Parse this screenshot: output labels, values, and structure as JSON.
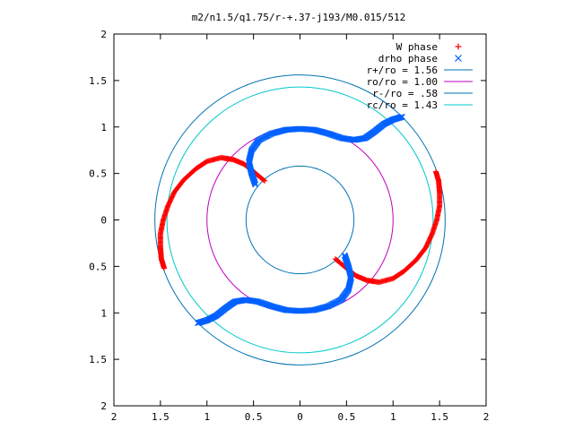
{
  "chart_data": {
    "type": "scatter",
    "title": "m2/n1.5/q1.75/r-+.37-j193/M0.015/512",
    "xlabel": "",
    "ylabel": "",
    "xlim": [
      -2,
      2
    ],
    "ylim": [
      -2,
      2
    ],
    "x_ticks": [
      -2,
      -1.5,
      -1,
      -0.5,
      0,
      0.5,
      1,
      1.5,
      2
    ],
    "y_ticks": [
      -2,
      -1.5,
      -1,
      -0.5,
      0,
      0.5,
      1,
      1.5,
      2
    ],
    "x_tick_labels": [
      "2",
      "1.5",
      "1",
      "0.5",
      "0",
      "0.5",
      "1",
      "1.5",
      "2"
    ],
    "y_tick_labels": [
      "2",
      "1.5",
      "1",
      "0.5",
      "0",
      "0.5",
      "1",
      "1.5",
      "2"
    ],
    "grid": false,
    "legend_position": "top-right",
    "points": [
      {
        "name": "W phase",
        "marker": "+",
        "color": "#ff0000",
        "arms": [
          {
            "xy": [
              [
                -0.38,
                0.42
              ],
              [
                -0.5,
                0.52
              ],
              [
                -0.6,
                0.6
              ],
              [
                -0.72,
                0.65
              ],
              [
                -0.85,
                0.67
              ],
              [
                -1.0,
                0.63
              ],
              [
                -1.12,
                0.55
              ],
              [
                -1.25,
                0.43
              ],
              [
                -1.35,
                0.3
              ],
              [
                -1.42,
                0.15
              ],
              [
                -1.47,
                0.0
              ],
              [
                -1.5,
                -0.15
              ],
              [
                -1.5,
                -0.3
              ],
              [
                -1.49,
                -0.42
              ],
              [
                -1.46,
                -0.52
              ]
            ]
          },
          {
            "xy": [
              [
                0.38,
                -0.42
              ],
              [
                0.5,
                -0.52
              ],
              [
                0.6,
                -0.6
              ],
              [
                0.72,
                -0.65
              ],
              [
                0.85,
                -0.67
              ],
              [
                1.0,
                -0.63
              ],
              [
                1.12,
                -0.55
              ],
              [
                1.25,
                -0.43
              ],
              [
                1.35,
                -0.3
              ],
              [
                1.42,
                -0.15
              ],
              [
                1.47,
                0.0
              ],
              [
                1.5,
                0.15
              ],
              [
                1.5,
                0.3
              ],
              [
                1.49,
                0.42
              ],
              [
                1.46,
                0.52
              ]
            ]
          }
        ]
      },
      {
        "name": "drho phase",
        "marker": "x",
        "color": "#0060ff",
        "arms": [
          {
            "xy": [
              [
                -0.48,
                0.38
              ],
              [
                -0.52,
                0.5
              ],
              [
                -0.55,
                0.62
              ],
              [
                -0.52,
                0.75
              ],
              [
                -0.44,
                0.86
              ],
              [
                -0.3,
                0.93
              ],
              [
                -0.15,
                0.97
              ],
              [
                0.0,
                0.98
              ],
              [
                0.15,
                0.97
              ],
              [
                0.3,
                0.93
              ],
              [
                0.45,
                0.88
              ],
              [
                0.58,
                0.86
              ],
              [
                0.7,
                0.88
              ],
              [
                0.8,
                0.95
              ],
              [
                0.9,
                1.03
              ],
              [
                1.0,
                1.08
              ],
              [
                1.1,
                1.11
              ]
            ]
          },
          {
            "xy": [
              [
                0.48,
                -0.38
              ],
              [
                0.52,
                -0.5
              ],
              [
                0.55,
                -0.62
              ],
              [
                0.52,
                -0.75
              ],
              [
                0.44,
                -0.86
              ],
              [
                0.3,
                -0.93
              ],
              [
                0.15,
                -0.97
              ],
              [
                0.0,
                -0.98
              ],
              [
                -0.15,
                -0.97
              ],
              [
                -0.3,
                -0.93
              ],
              [
                -0.45,
                -0.88
              ],
              [
                -0.58,
                -0.86
              ],
              [
                -0.7,
                -0.88
              ],
              [
                -0.8,
                -0.95
              ],
              [
                -0.9,
                -1.03
              ],
              [
                -1.0,
                -1.08
              ],
              [
                -1.1,
                -1.11
              ]
            ]
          }
        ]
      }
    ],
    "circles": [
      {
        "name": "r+/ro = 1.56",
        "r": 1.56,
        "color": "#0072b2"
      },
      {
        "name": "ro/ro = 1.00",
        "r": 1.0,
        "color": "#c000c0"
      },
      {
        "name": "r-/ro = .58",
        "r": 0.58,
        "color": "#0072b2"
      },
      {
        "name": "rc/ro = 1.43",
        "r": 1.43,
        "color": "#00c8c8"
      }
    ]
  }
}
